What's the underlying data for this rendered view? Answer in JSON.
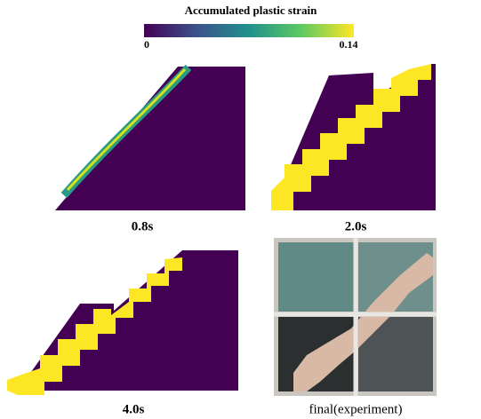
{
  "colorbar": {
    "label": "Accumulated plastic strain",
    "min_label": "0",
    "max_label": "0.14"
  },
  "panels": [
    {
      "caption": "0.8s"
    },
    {
      "caption": "2.0s"
    },
    {
      "caption": "4.0s"
    },
    {
      "caption": "final(experiment)"
    }
  ]
}
